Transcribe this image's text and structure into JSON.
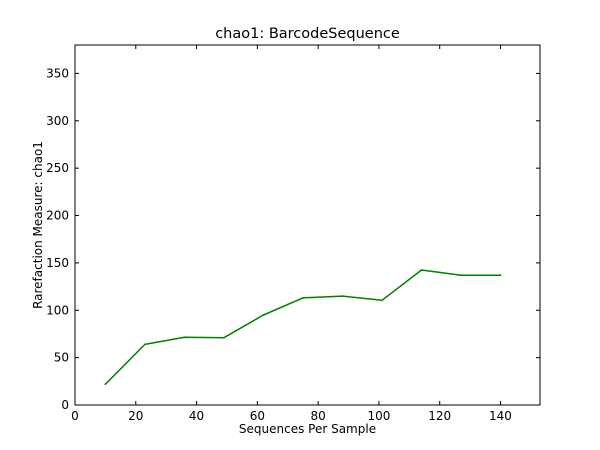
{
  "chart_data": {
    "type": "line",
    "title": "chao1: BarcodeSequence",
    "xlabel": "Sequences Per Sample",
    "ylabel": "Rarefaction Measure: chao1",
    "xlim": [
      0,
      153
    ],
    "ylim": [
      0,
      380
    ],
    "xticks": [
      0,
      20,
      40,
      60,
      80,
      100,
      120,
      140
    ],
    "yticks": [
      0,
      50,
      100,
      150,
      200,
      250,
      300,
      350
    ],
    "grid": false,
    "legend": "none",
    "series": [
      {
        "color": "#008000",
        "x": [
          10,
          23,
          36,
          49,
          62,
          75,
          88,
          101,
          114,
          127,
          140
        ],
        "y": [
          22,
          64,
          71.5,
          71,
          95,
          113,
          115,
          110.5,
          142.5,
          137,
          137
        ]
      }
    ]
  }
}
